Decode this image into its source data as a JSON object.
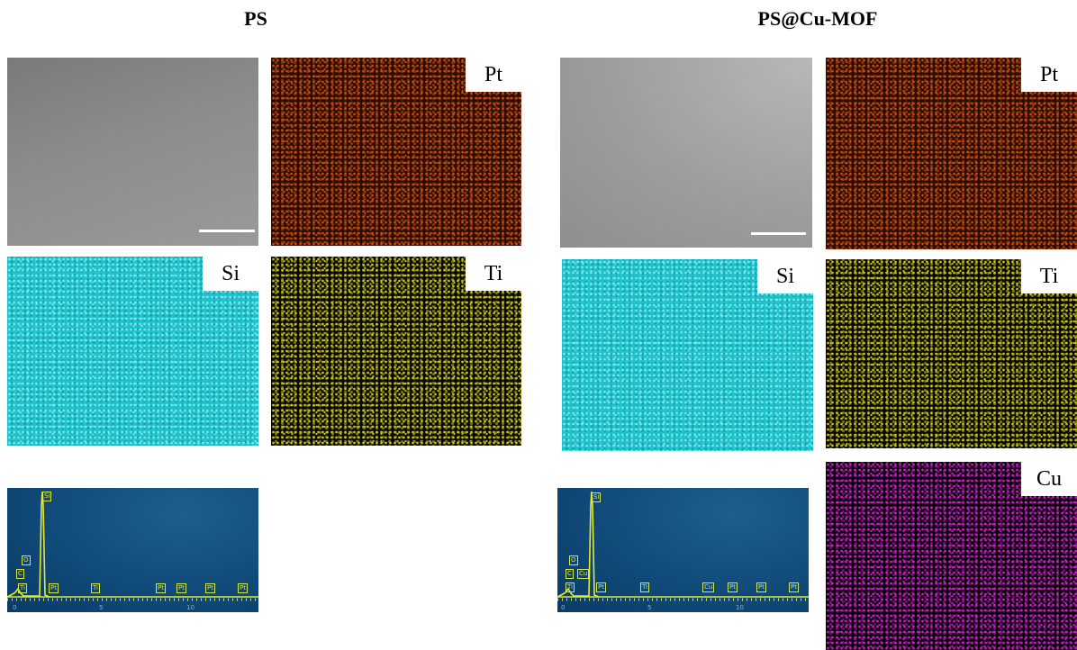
{
  "panels": [
    {
      "title": "PS",
      "maps": [
        "Pt",
        "Si",
        "Ti"
      ],
      "spectrum": {
        "peaks": [
          "Si",
          "O",
          "C",
          "Ti",
          "Pt",
          "Ti",
          "Pt",
          "Pt",
          "Pt",
          "Pt"
        ],
        "ticks": [
          "0",
          "5",
          "10"
        ]
      }
    },
    {
      "title": "PS@Cu-MOF",
      "maps": [
        "Pt",
        "Si",
        "Ti",
        "Cu"
      ],
      "spectrum": {
        "peaks": [
          "Si",
          "O",
          "C",
          "Cu",
          "Ti",
          "Pt",
          "Ti",
          "Cu",
          "Pt",
          "Pt",
          "Pt"
        ],
        "ticks": [
          "0",
          "5",
          "10"
        ]
      }
    }
  ]
}
